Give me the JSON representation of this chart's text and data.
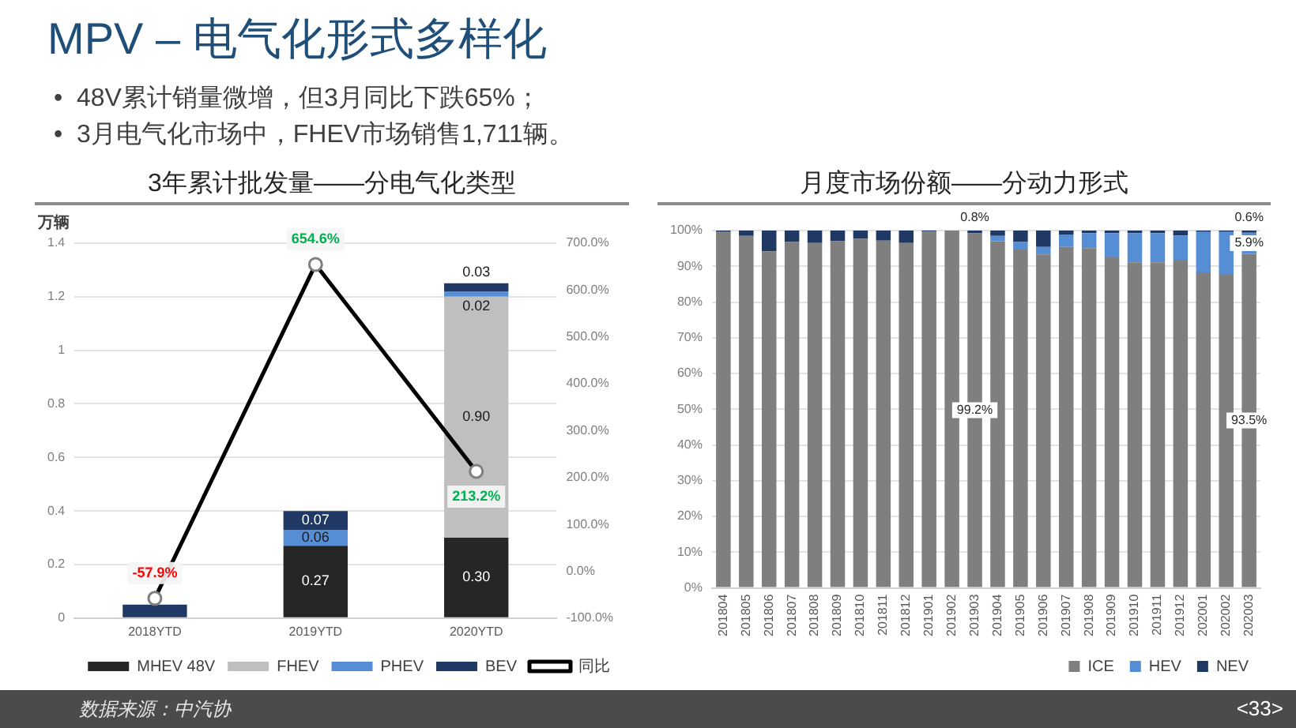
{
  "chart_data": [
    {
      "type": "other",
      "title": "MPV – 电气化形式多样化",
      "annotations": [
        "•  48V累计销量微增，但3月同比下跌65%；",
        "•  3月电气化市场中，FHEV市场销售1,711辆。",
        "数据来源：中汽协",
        "<33>"
      ]
    },
    {
      "type": "bar",
      "title": "3年累计批发量——分电气化类型",
      "ylabel": "万辆",
      "categories": [
        "2018YTD",
        "2019YTD",
        "2020YTD"
      ],
      "stacked": true,
      "series": [
        {
          "name": "MHEV 48V",
          "color": "#262626",
          "values": [
            0,
            0.27,
            0.3
          ],
          "value_labels": [
            null,
            "0.27",
            "0.30"
          ]
        },
        {
          "name": "FHEV",
          "color": "#bfbfbf",
          "values": [
            0,
            0,
            0.9
          ],
          "value_labels": [
            null,
            null,
            "0.90"
          ]
        },
        {
          "name": "PHEV",
          "color": "#558ed5",
          "values": [
            0,
            0.06,
            0.02
          ],
          "value_labels": [
            null,
            "0.06",
            "0.02"
          ]
        },
        {
          "name": "BEV",
          "color": "#1f3864",
          "values": [
            0.05,
            0.07,
            0.03
          ],
          "value_labels": [
            null,
            "0.07",
            "0.03"
          ]
        },
        {
          "name": "同比",
          "type": "line",
          "axis": "y2",
          "color": "#000000",
          "values": [
            -57.9,
            654.6,
            213.2
          ],
          "value_labels": [
            "-57.9%",
            "654.6%",
            "213.2%"
          ]
        }
      ],
      "ylim": [
        0,
        1.4
      ],
      "yticks": [
        0,
        0.2,
        0.4,
        0.6,
        0.8,
        1,
        1.2,
        1.4
      ],
      "y2lim": [
        -100,
        700
      ],
      "y2ticks": [
        {
          "value": -100,
          "label": "-100.0%"
        },
        {
          "value": 0,
          "label": "0.0%"
        },
        {
          "value": 100,
          "label": "100.0%"
        },
        {
          "value": 200,
          "label": "200.0%"
        },
        {
          "value": 300,
          "label": "300.0%"
        },
        {
          "value": 400,
          "label": "400.0%"
        },
        {
          "value": 500,
          "label": "500.0%"
        },
        {
          "value": 600,
          "label": "600.0%"
        },
        {
          "value": 700,
          "label": "700.0%"
        }
      ],
      "grid": "y",
      "legend": "bottom right",
      "marker": "circle"
    },
    {
      "type": "bar",
      "title": "月度市场份额——分动力形式",
      "categories": [
        "201804",
        "201805",
        "201806",
        "201807",
        "201808",
        "201809",
        "201810",
        "201811",
        "201812",
        "201901",
        "201902",
        "201903",
        "201904",
        "201905",
        "201906",
        "201907",
        "201908",
        "201909",
        "201910",
        "201911",
        "201912",
        "202001",
        "202002",
        "202003"
      ],
      "stacked": true,
      "series": [
        {
          "name": "ICE",
          "color": "#7f7f7f",
          "values": [
            99.6,
            98.5,
            94.2,
            96.8,
            96.5,
            97,
            97.7,
            97.2,
            96.5,
            99.7,
            100,
            99.2,
            97,
            94.7,
            93.3,
            95.4,
            95.1,
            92.5,
            91.1,
            91.1,
            91.8,
            88.3,
            87.6,
            93.5
          ],
          "value_labels": [
            null,
            null,
            null,
            null,
            null,
            null,
            null,
            null,
            null,
            null,
            null,
            "99.2%",
            null,
            null,
            null,
            null,
            null,
            null,
            null,
            null,
            null,
            null,
            null,
            "93.5%"
          ]
        },
        {
          "name": "HEV",
          "color": "#558ed5",
          "values": [
            0,
            0,
            0,
            0,
            0,
            0,
            0,
            0,
            0,
            0,
            0,
            0,
            1.5,
            2.1,
            2.1,
            3.5,
            4.2,
            6.8,
            8.2,
            8.2,
            6.8,
            11.3,
            12,
            5.9
          ],
          "value_labels": [
            null,
            null,
            null,
            null,
            null,
            null,
            null,
            null,
            null,
            null,
            null,
            null,
            null,
            null,
            null,
            null,
            null,
            null,
            null,
            null,
            null,
            null,
            null,
            "5.9%"
          ]
        },
        {
          "name": "NEV",
          "color": "#1f3864",
          "values": [
            0.4,
            1.5,
            5.8,
            3.2,
            3.5,
            3,
            2.3,
            2.8,
            3.5,
            0.3,
            0,
            0.8,
            1.5,
            3.2,
            4.6,
            1.1,
            0.7,
            0.7,
            0.7,
            0.7,
            1.4,
            0.4,
            0.4,
            0.6
          ],
          "value_labels": [
            null,
            null,
            null,
            null,
            null,
            null,
            null,
            null,
            null,
            null,
            null,
            "0.8%",
            null,
            null,
            null,
            null,
            null,
            null,
            null,
            null,
            null,
            null,
            null,
            "0.6%"
          ]
        }
      ],
      "ylim": [
        0,
        100
      ],
      "yticks": [
        {
          "value": 0,
          "label": "0%"
        },
        {
          "value": 10,
          "label": "10%"
        },
        {
          "value": 20,
          "label": "20%"
        },
        {
          "value": 30,
          "label": "30%"
        },
        {
          "value": 40,
          "label": "40%"
        },
        {
          "value": 50,
          "label": "50%"
        },
        {
          "value": 60,
          "label": "60%"
        },
        {
          "value": 70,
          "label": "70%"
        },
        {
          "value": 80,
          "label": "80%"
        },
        {
          "value": 90,
          "label": "90%"
        },
        {
          "value": 100,
          "label": "100%"
        }
      ],
      "grid": "y",
      "legend": "bottom right"
    }
  ]
}
